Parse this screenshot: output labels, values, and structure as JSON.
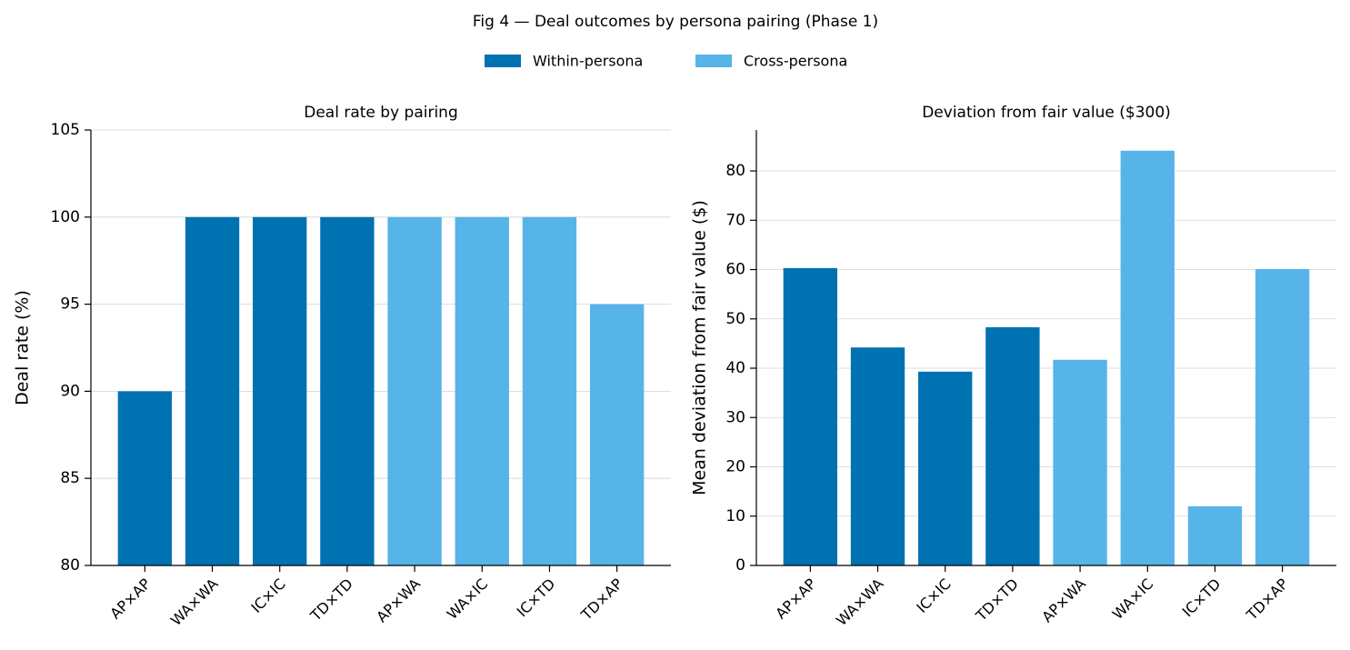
{
  "title": "Fig 4 — Deal outcomes by persona pairing (Phase 1)",
  "chart_data": [
    {
      "type": "bar",
      "title": "Deal rate by pairing",
      "y_label": "Deal rate (%)",
      "categories": [
        "AP×AP",
        "WA×WA",
        "IC×IC",
        "TD×TD",
        "AP×WA",
        "WA×IC",
        "IC×TD",
        "TD×AP"
      ],
      "series": [
        {
          "name": "Within-persona",
          "color": "#0072b2",
          "values": [
            90,
            100,
            100,
            100,
            null,
            null,
            null,
            null
          ]
        },
        {
          "name": "Cross-persona",
          "color": "#56b4e9",
          "values": [
            null,
            null,
            null,
            null,
            100,
            100,
            100,
            95
          ]
        }
      ],
      "ylim": [
        80,
        105
      ],
      "yticks": [
        80,
        85,
        90,
        95,
        100,
        105
      ],
      "grid": true
    },
    {
      "type": "bar",
      "title": "Deviation from fair value ($300)",
      "y_label": "Mean deviation from fair value ($)",
      "categories": [
        "AP×AP",
        "WA×WA",
        "IC×IC",
        "TD×TD",
        "AP×WA",
        "WA×IC",
        "IC×TD",
        "TD×AP"
      ],
      "series": [
        {
          "name": "Within-persona",
          "color": "#0072b2",
          "values": [
            60.3,
            44.2,
            39.3,
            48.3,
            null,
            null,
            null,
            null
          ]
        },
        {
          "name": "Cross-persona",
          "color": "#56b4e9",
          "values": [
            null,
            null,
            null,
            null,
            41.7,
            84.1,
            12.0,
            60.1
          ]
        }
      ],
      "ylim": [
        0,
        88.3
      ],
      "yticks": [
        0,
        10,
        20,
        30,
        40,
        50,
        60,
        70,
        80
      ],
      "grid": true
    }
  ]
}
